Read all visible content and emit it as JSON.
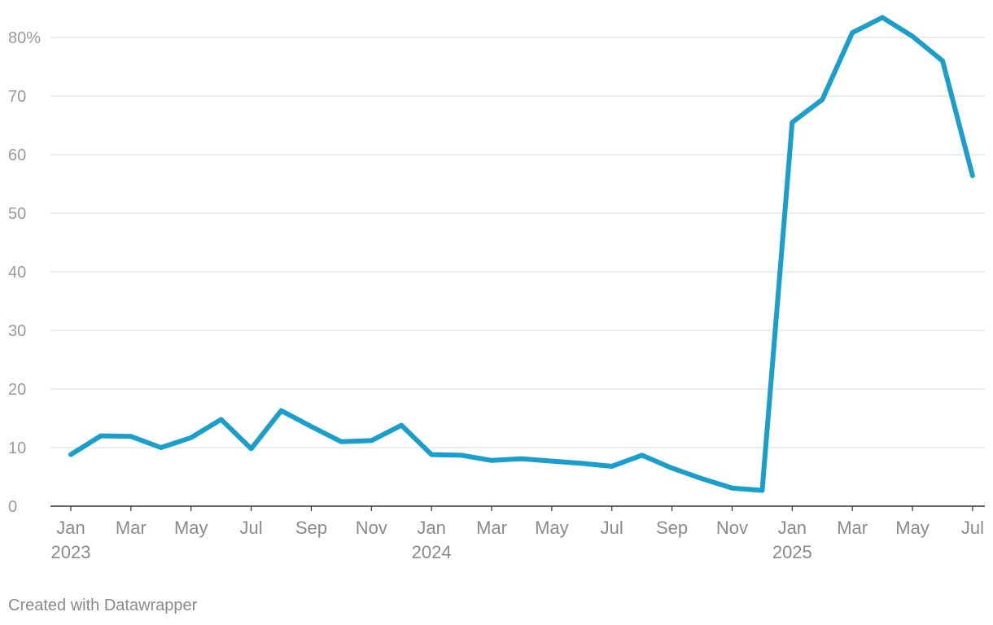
{
  "chart_data": {
    "type": "line",
    "title": "",
    "xlabel": "",
    "ylabel": "",
    "ylim": [
      0,
      80
    ],
    "y_ticks": [
      {
        "value": 0,
        "label": "0"
      },
      {
        "value": 10,
        "label": "10"
      },
      {
        "value": 20,
        "label": "20"
      },
      {
        "value": 30,
        "label": "30"
      },
      {
        "value": 40,
        "label": "40"
      },
      {
        "value": 50,
        "label": "50"
      },
      {
        "value": 60,
        "label": "60"
      },
      {
        "value": 70,
        "label": "70"
      },
      {
        "value": 80,
        "label": "80%"
      }
    ],
    "x_ticks": [
      {
        "date": "2023-01",
        "label": "Jan",
        "year": "2023"
      },
      {
        "date": "2023-03",
        "label": "Mar"
      },
      {
        "date": "2023-05",
        "label": "May"
      },
      {
        "date": "2023-07",
        "label": "Jul"
      },
      {
        "date": "2023-09",
        "label": "Sep"
      },
      {
        "date": "2023-11",
        "label": "Nov"
      },
      {
        "date": "2024-01",
        "label": "Jan",
        "year": "2024"
      },
      {
        "date": "2024-03",
        "label": "Mar"
      },
      {
        "date": "2024-05",
        "label": "May"
      },
      {
        "date": "2024-07",
        "label": "Jul"
      },
      {
        "date": "2024-09",
        "label": "Sep"
      },
      {
        "date": "2024-11",
        "label": "Nov"
      },
      {
        "date": "2025-01",
        "label": "Jan",
        "year": "2025"
      },
      {
        "date": "2025-03",
        "label": "Mar"
      },
      {
        "date": "2025-05",
        "label": "May"
      },
      {
        "date": "2025-07",
        "label": "Jul"
      }
    ],
    "grid": true,
    "series": [
      {
        "color": "#1a9fcc",
        "points": [
          {
            "x": "2023-01",
            "y": 8.8
          },
          {
            "x": "2023-02",
            "y": 12.0
          },
          {
            "x": "2023-03",
            "y": 11.9
          },
          {
            "x": "2023-04",
            "y": 10.0
          },
          {
            "x": "2023-05",
            "y": 11.7
          },
          {
            "x": "2023-06",
            "y": 14.8
          },
          {
            "x": "2023-07",
            "y": 9.8
          },
          {
            "x": "2023-08",
            "y": 16.3
          },
          {
            "x": "2023-09",
            "y": 13.6
          },
          {
            "x": "2023-10",
            "y": 11.0
          },
          {
            "x": "2023-11",
            "y": 11.2
          },
          {
            "x": "2023-12",
            "y": 13.8
          },
          {
            "x": "2024-01",
            "y": 8.8
          },
          {
            "x": "2024-02",
            "y": 8.7
          },
          {
            "x": "2024-03",
            "y": 7.8
          },
          {
            "x": "2024-04",
            "y": 8.1
          },
          {
            "x": "2024-05",
            "y": 7.7
          },
          {
            "x": "2024-06",
            "y": 7.3
          },
          {
            "x": "2024-07",
            "y": 6.8
          },
          {
            "x": "2024-08",
            "y": 8.7
          },
          {
            "x": "2024-09",
            "y": 6.5
          },
          {
            "x": "2024-10",
            "y": 4.7
          },
          {
            "x": "2024-11",
            "y": 3.1
          },
          {
            "x": "2024-12",
            "y": 2.7
          },
          {
            "x": "2025-01",
            "y": 65.5
          },
          {
            "x": "2025-02",
            "y": 69.4
          },
          {
            "x": "2025-03",
            "y": 80.8
          },
          {
            "x": "2025-04",
            "y": 83.4
          },
          {
            "x": "2025-05",
            "y": 80.2
          },
          {
            "x": "2025-06",
            "y": 76.0
          },
          {
            "x": "2025-07",
            "y": 56.4
          }
        ]
      }
    ]
  },
  "footer": {
    "credit": "Created with Datawrapper"
  }
}
